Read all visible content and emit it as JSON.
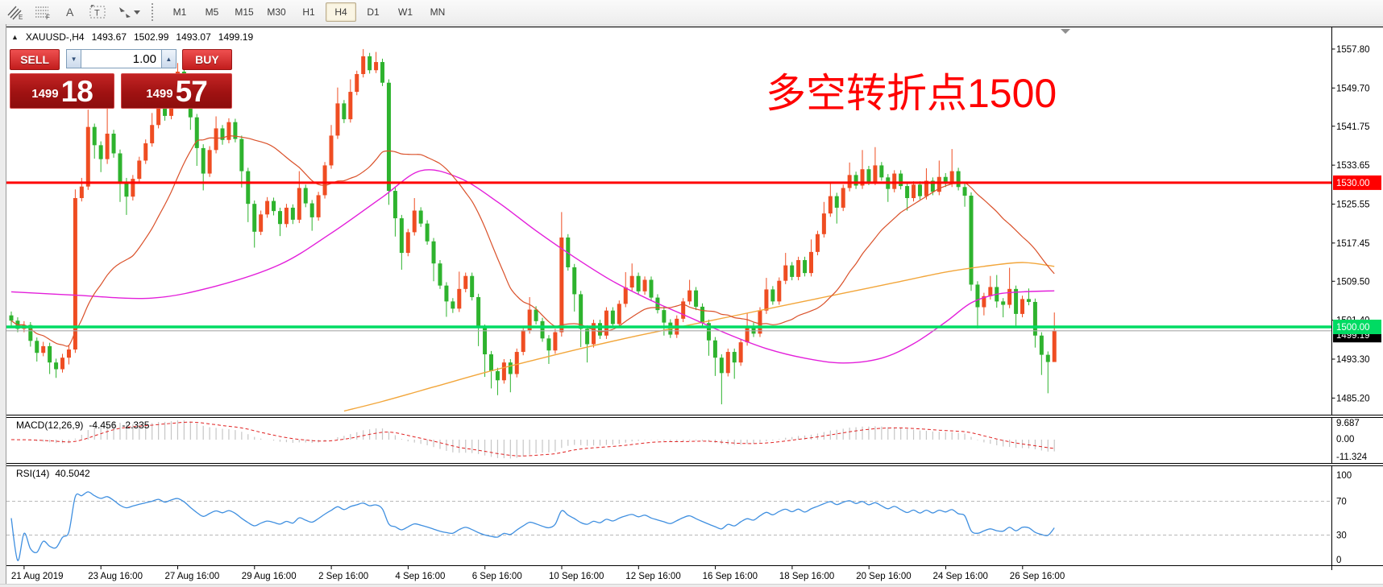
{
  "toolbar": {
    "tools": [
      {
        "name": "equidistant-channel",
        "glyph": "E"
      },
      {
        "name": "fibonacci-retracement",
        "glyph": "F"
      },
      {
        "name": "text",
        "glyph": "A"
      },
      {
        "name": "text-label",
        "glyph": "T"
      },
      {
        "name": "arrows",
        "glyph": "▾"
      }
    ],
    "timeframes": [
      "M1",
      "M5",
      "M15",
      "M30",
      "H1",
      "H4",
      "D1",
      "W1",
      "MN"
    ],
    "active_timeframe": "H4"
  },
  "chart": {
    "header": {
      "collapse_glyph": "▲",
      "symbol": "XAUUSD-,H4",
      "open": "1493.67",
      "high": "1502.99",
      "low": "1493.07",
      "close": "1499.19"
    },
    "trade_panel": {
      "sell_label": "SELL",
      "buy_label": "BUY",
      "volume": "1.00",
      "bid": {
        "main": "1499",
        "pips": "18"
      },
      "ask": {
        "main": "1499",
        "pips": "57"
      }
    },
    "annotation": {
      "text": "多空转折点1500",
      "color": "#ff0000"
    },
    "levels": {
      "resistance": {
        "label": "1530.00",
        "value": 1530.0,
        "color": "#ff0000"
      },
      "support": {
        "label": "1500.00",
        "value": 1500.0,
        "color": "#00db63"
      },
      "last_price": {
        "label": "1499.19",
        "value": 1499.19,
        "line_color": "#aaaaaa",
        "badge_color": "#000000"
      }
    },
    "y_axis": {
      "labels": [
        "1557.80",
        "1549.70",
        "1541.75",
        "1533.65",
        "1525.55",
        "1517.45",
        "1509.50",
        "1501.40",
        "1493.30",
        "1485.20"
      ]
    },
    "x_axis": {
      "labels": [
        "21 Aug 2019",
        "23 Aug 16:00",
        "27 Aug 16:00",
        "29 Aug 16:00",
        "2 Sep 16:00",
        "4 Sep 16:00",
        "6 Sep 16:00",
        "10 Sep 16:00",
        "12 Sep 16:00",
        "16 Sep 16:00",
        "18 Sep 16:00",
        "20 Sep 16:00",
        "24 Sep 16:00",
        "26 Sep 16:00"
      ]
    }
  },
  "chart_data": {
    "type": "candlestick",
    "symbol": "XAUUSD",
    "timeframe": "H4",
    "title": "XAUUSD-,H4 1493.67 1502.99 1493.07 1499.19",
    "first_open": 1502.4,
    "closes": [
      1501.3,
      1499.6,
      1500.4,
      1497.1,
      1494.6,
      1496.0,
      1492.6,
      1491.2,
      1493.6,
      1495.3,
      1526.8,
      1529.2,
      1541.6,
      1537.8,
      1534.9,
      1540.2,
      1536.1,
      1530.2,
      1527.1,
      1530.8,
      1534.6,
      1538.2,
      1542.0,
      1546.8,
      1543.9,
      1549.3,
      1553.1,
      1549.8,
      1543.6,
      1537.2,
      1531.9,
      1536.8,
      1541.3,
      1538.9,
      1542.6,
      1539.1,
      1532.4,
      1525.6,
      1519.8,
      1523.4,
      1526.2,
      1524.1,
      1521.4,
      1524.8,
      1522.3,
      1528.9,
      1525.7,
      1522.8,
      1527.4,
      1533.6,
      1539.8,
      1546.5,
      1543.2,
      1548.9,
      1552.6,
      1556.3,
      1553.4,
      1555.1,
      1550.8,
      1528.3,
      1522.6,
      1515.4,
      1519.7,
      1524.2,
      1521.5,
      1517.8,
      1513.2,
      1508.6,
      1505.3,
      1503.8,
      1507.9,
      1510.6,
      1506.2,
      1499.8,
      1494.3,
      1490.8,
      1488.9,
      1492.6,
      1490.2,
      1494.8,
      1499.3,
      1503.6,
      1501.2,
      1497.6,
      1495.1,
      1498.9,
      1518.6,
      1512.4,
      1506.8,
      1499.6,
      1496.4,
      1500.8,
      1498.2,
      1503.4,
      1500.6,
      1504.8,
      1508.2,
      1510.6,
      1507.4,
      1509.8,
      1506.1,
      1503.5,
      1500.9,
      1498.4,
      1501.7,
      1505.3,
      1507.6,
      1504.2,
      1500.8,
      1497.2,
      1493.6,
      1490.4,
      1494.8,
      1492.6,
      1496.8,
      1500.2,
      1498.6,
      1503.4,
      1507.8,
      1505.3,
      1509.6,
      1512.8,
      1510.4,
      1513.9,
      1511.2,
      1515.6,
      1519.3,
      1523.6,
      1527.2,
      1524.8,
      1528.9,
      1531.6,
      1529.4,
      1532.8,
      1530.2,
      1533.6,
      1531.1,
      1528.7,
      1531.9,
      1529.3,
      1526.8,
      1529.6,
      1527.2,
      1530.4,
      1528.1,
      1531.2,
      1529.8,
      1532.4,
      1529.1,
      1527.3,
      1508.8,
      1504.1,
      1506.4,
      1508.3,
      1505.3,
      1504.6,
      1507.9,
      1502.7,
      1505.8,
      1505.2,
      1498.2,
      1494.2,
      1492.7,
      1499.2
    ],
    "highs": [
      1503.2,
      1502.0,
      1501.2,
      1501.0,
      1497.8,
      1496.9,
      1496.7,
      1493.4,
      1494.4,
      1496.2,
      1528.6,
      1531.0,
      1545.2,
      1542.3,
      1538.6,
      1546.3,
      1541.0,
      1536.9,
      1531.0,
      1531.6,
      1535.4,
      1539.0,
      1544.5,
      1549.2,
      1547.5,
      1552.0,
      1554.9,
      1553.8,
      1550.5,
      1544.3,
      1538.0,
      1537.6,
      1543.8,
      1542.0,
      1543.4,
      1543.3,
      1539.8,
      1533.1,
      1526.3,
      1524.2,
      1527.0,
      1526.9,
      1524.8,
      1525.6,
      1525.5,
      1532.4,
      1529.6,
      1526.4,
      1528.1,
      1534.3,
      1542.0,
      1549.8,
      1547.2,
      1551.5,
      1553.3,
      1557.8,
      1557.0,
      1557.2,
      1555.8,
      1551.5,
      1529.0,
      1523.3,
      1520.4,
      1526.8,
      1524.9,
      1522.2,
      1518.5,
      1513.9,
      1509.3,
      1506.0,
      1511.5,
      1511.3,
      1511.3,
      1506.9,
      1500.5,
      1495.0,
      1491.5,
      1493.3,
      1493.3,
      1495.5,
      1500.0,
      1506.2,
      1504.3,
      1501.9,
      1498.3,
      1499.6,
      1523.9,
      1519.3,
      1513.1,
      1507.5,
      1500.3,
      1501.5,
      1501.5,
      1504.1,
      1504.1,
      1505.5,
      1511.4,
      1513.2,
      1511.3,
      1510.5,
      1510.5,
      1506.8,
      1504.2,
      1501.6,
      1502.4,
      1506.0,
      1509.8,
      1508.3,
      1504.9,
      1501.5,
      1497.9,
      1494.3,
      1495.5,
      1495.5,
      1497.5,
      1502.8,
      1500.9,
      1504.1,
      1510.2,
      1508.5,
      1510.3,
      1515.4,
      1513.5,
      1514.6,
      1514.6,
      1518.2,
      1520.0,
      1526.0,
      1529.8,
      1527.9,
      1529.6,
      1534.2,
      1532.3,
      1536.8,
      1533.5,
      1537.4,
      1534.3,
      1531.8,
      1532.6,
      1532.6,
      1530.0,
      1530.3,
      1530.3,
      1533.0,
      1531.1,
      1534.6,
      1532.0,
      1537.0,
      1533.1,
      1530.0,
      1528.0,
      1509.5,
      1507.1,
      1510.6,
      1510.8,
      1506.0,
      1512.3,
      1508.6,
      1506.5,
      1508.0,
      1505.9,
      1498.9,
      1494.9,
      1503.0
    ],
    "lows": [
      1500.2,
      1498.9,
      1498.9,
      1495.9,
      1492.8,
      1493.9,
      1490.2,
      1489.4,
      1490.5,
      1492.2,
      1494.6,
      1526.1,
      1528.5,
      1535.0,
      1532.2,
      1533.9,
      1535.2,
      1526.0,
      1523.3,
      1526.3,
      1530.1,
      1533.9,
      1537.5,
      1541.3,
      1542.9,
      1543.2,
      1548.5,
      1548.9,
      1541.0,
      1533.5,
      1528.4,
      1531.2,
      1536.1,
      1537.9,
      1538.2,
      1538.4,
      1529.0,
      1521.8,
      1516.5,
      1519.1,
      1522.7,
      1523.2,
      1518.9,
      1520.7,
      1521.4,
      1521.6,
      1524.9,
      1520.0,
      1522.1,
      1526.7,
      1532.9,
      1539.1,
      1542.4,
      1542.5,
      1548.2,
      1551.9,
      1552.7,
      1552.8,
      1550.1,
      1525.4,
      1518.8,
      1511.9,
      1514.7,
      1519.0,
      1520.8,
      1517.1,
      1509.5,
      1507.9,
      1502.1,
      1502.9,
      1503.1,
      1507.2,
      1505.5,
      1496.0,
      1489.6,
      1487.2,
      1485.8,
      1488.2,
      1486.4,
      1489.5,
      1494.1,
      1498.6,
      1500.5,
      1496.9,
      1492.3,
      1494.4,
      1498.0,
      1511.7,
      1503.2,
      1495.8,
      1492.6,
      1495.7,
      1497.5,
      1497.5,
      1499.9,
      1500.0,
      1504.1,
      1507.5,
      1506.7,
      1506.7,
      1505.4,
      1502.8,
      1498.2,
      1497.7,
      1497.7,
      1501.0,
      1504.6,
      1503.5,
      1500.1,
      1494.0,
      1489.8,
      1483.9,
      1489.7,
      1489.2,
      1491.9,
      1496.1,
      1497.9,
      1497.9,
      1502.7,
      1504.6,
      1504.6,
      1508.9,
      1509.7,
      1509.7,
      1510.5,
      1510.5,
      1514.9,
      1518.6,
      1522.9,
      1521.5,
      1524.1,
      1528.2,
      1528.7,
      1528.7,
      1529.5,
      1529.5,
      1530.4,
      1526.0,
      1528.0,
      1528.6,
      1524.2,
      1526.1,
      1526.5,
      1526.5,
      1527.4,
      1527.4,
      1529.1,
      1529.1,
      1528.4,
      1525.0,
      1507.5,
      1499.7,
      1502.4,
      1505.7,
      1504.0,
      1502.0,
      1503.9,
      1500.0,
      1502.0,
      1504.5,
      1495.7,
      1490.0,
      1486.2,
      1493.1
    ],
    "candle_colors": {
      "up": "#ef4d22",
      "down": "#2eb32e"
    },
    "ma_fast": {
      "type": "sma",
      "period": 20,
      "color": "#da512a"
    },
    "ma_medium": {
      "color": "#e31fda",
      "points": [
        [
          0,
          1507.3
        ],
        [
          10,
          1506.6
        ],
        [
          22,
          1506.0
        ],
        [
          32,
          1508.5
        ],
        [
          42,
          1513.0
        ],
        [
          50,
          1519.5
        ],
        [
          58,
          1527.0
        ],
        [
          64,
          1532.5
        ],
        [
          70,
          1531.0
        ],
        [
          76,
          1526.0
        ],
        [
          82,
          1520.0
        ],
        [
          88,
          1514.5
        ],
        [
          94,
          1509.5
        ],
        [
          100,
          1505.5
        ],
        [
          106,
          1502.0
        ],
        [
          112,
          1498.5
        ],
        [
          118,
          1495.5
        ],
        [
          124,
          1493.5
        ],
        [
          130,
          1492.5
        ],
        [
          136,
          1493.5
        ],
        [
          141,
          1496.5
        ],
        [
          146,
          1501.0
        ],
        [
          150,
          1505.0
        ],
        [
          154,
          1506.8
        ],
        [
          158,
          1507.3
        ],
        [
          163,
          1507.5
        ]
      ]
    },
    "ma_slow": {
      "color": "#f2a63b",
      "points": [
        [
          52,
          1482.5
        ],
        [
          58,
          1484.5
        ],
        [
          66,
          1487.5
        ],
        [
          74,
          1490.5
        ],
        [
          82,
          1493.2
        ],
        [
          90,
          1495.8
        ],
        [
          98,
          1498.2
        ],
        [
          106,
          1500.4
        ],
        [
          114,
          1502.6
        ],
        [
          122,
          1504.8
        ],
        [
          130,
          1507.0
        ],
        [
          138,
          1509.2
        ],
        [
          146,
          1511.4
        ],
        [
          152,
          1512.6
        ],
        [
          158,
          1513.4
        ],
        [
          163,
          1512.6
        ]
      ]
    },
    "macd": {
      "label": "MACD(12,26,9)",
      "value_main": "-4.456",
      "value_signal": "-2.335",
      "params": [
        12,
        26,
        9
      ],
      "axis_labels": [
        "9.687",
        "0.00",
        "-11.324"
      ],
      "histogram_color": "#c6c6c6",
      "signal_color": "#e02020"
    },
    "rsi": {
      "label": "RSI(14)",
      "value": "40.5042",
      "period": 14,
      "axis_labels": [
        "100",
        "70",
        "30",
        "0"
      ],
      "levels": [
        70,
        30
      ],
      "color": "#3f8fe0",
      "level_color": "#b8b8b8"
    }
  }
}
